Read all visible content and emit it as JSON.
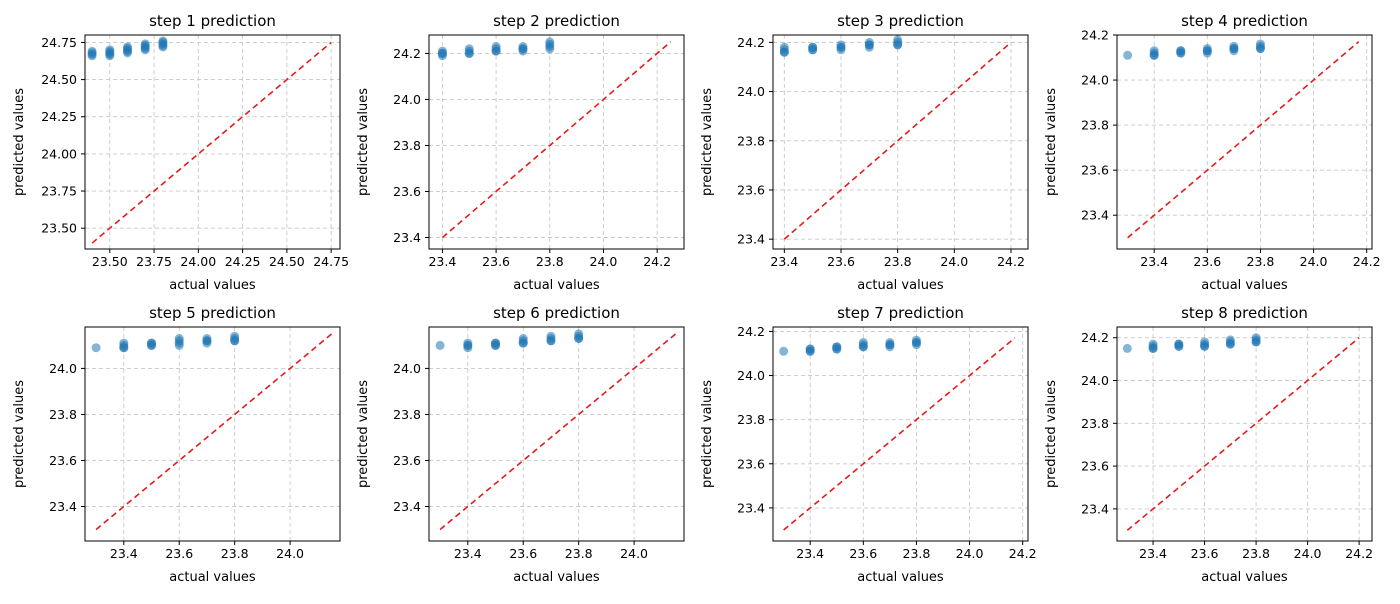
{
  "colors": {
    "points": "#1f77b4",
    "reference_line": "#e41a1c",
    "grid": "#c8c8c8",
    "axes": "#000000"
  },
  "chart_data": [
    {
      "type": "scatter",
      "title": "step 1 prediction",
      "xlabel": "actual values",
      "ylabel": "predicted values",
      "xlim": [
        23.36,
        24.8
      ],
      "ylim": [
        23.36,
        24.8
      ],
      "xticks": [
        23.5,
        23.75,
        24.0,
        24.25,
        24.5,
        24.75
      ],
      "yticks": [
        23.5,
        23.75,
        24.0,
        24.25,
        24.5,
        24.75
      ],
      "tick_labels_x": [
        "23.50",
        "23.75",
        "24.00",
        "24.25",
        "24.50",
        "24.75"
      ],
      "tick_labels_y": [
        "23.50",
        "23.75",
        "24.00",
        "24.25",
        "24.50",
        "24.75"
      ],
      "grid": true,
      "reference_line": [
        23.4,
        24.75
      ],
      "points": {
        "x": [
          23.4,
          23.4,
          23.4,
          23.4,
          23.5,
          23.5,
          23.5,
          23.5,
          23.5,
          23.6,
          23.6,
          23.6,
          23.6,
          23.6,
          23.7,
          23.7,
          23.7,
          23.7,
          23.7,
          23.8,
          23.8,
          23.8,
          23.8,
          23.8
        ],
        "y": [
          24.67,
          24.68,
          24.69,
          24.66,
          24.67,
          24.68,
          24.69,
          24.7,
          24.66,
          24.69,
          24.7,
          24.71,
          24.72,
          24.68,
          24.7,
          24.71,
          24.72,
          24.73,
          24.74,
          24.72,
          24.73,
          24.74,
          24.75,
          24.76
        ]
      }
    },
    {
      "type": "scatter",
      "title": "step 2 prediction",
      "xlabel": "actual values",
      "ylabel": "predicted values",
      "xlim": [
        23.35,
        24.3
      ],
      "ylim": [
        23.35,
        24.28
      ],
      "xticks": [
        23.4,
        23.6,
        23.8,
        24.0,
        24.2
      ],
      "yticks": [
        23.4,
        23.6,
        23.8,
        24.0,
        24.2
      ],
      "tick_labels_x": [
        "23.4",
        "23.6",
        "23.8",
        "24.0",
        "24.2"
      ],
      "tick_labels_y": [
        "23.4",
        "23.6",
        "23.8",
        "24.0",
        "24.2"
      ],
      "grid": true,
      "reference_line": [
        23.4,
        24.25
      ],
      "points": {
        "x": [
          23.4,
          23.4,
          23.4,
          23.4,
          23.5,
          23.5,
          23.5,
          23.5,
          23.6,
          23.6,
          23.6,
          23.6,
          23.7,
          23.7,
          23.7,
          23.7,
          23.8,
          23.8,
          23.8,
          23.8
        ],
        "y": [
          24.2,
          24.21,
          24.19,
          24.2,
          24.2,
          24.21,
          24.22,
          24.2,
          24.21,
          24.22,
          24.23,
          24.21,
          24.21,
          24.22,
          24.23,
          24.22,
          24.22,
          24.23,
          24.24,
          24.25
        ]
      }
    },
    {
      "type": "scatter",
      "title": "step 3 prediction",
      "xlabel": "actual values",
      "ylabel": "predicted values",
      "xlim": [
        23.36,
        24.26
      ],
      "ylim": [
        23.36,
        24.23
      ],
      "xticks": [
        23.4,
        23.6,
        23.8,
        24.0,
        24.2
      ],
      "yticks": [
        23.4,
        23.6,
        23.8,
        24.0,
        24.2
      ],
      "tick_labels_x": [
        "23.4",
        "23.6",
        "23.8",
        "24.0",
        "24.2"
      ],
      "tick_labels_y": [
        "23.4",
        "23.6",
        "23.8",
        "24.0",
        "24.2"
      ],
      "grid": true,
      "reference_line": [
        23.4,
        24.2
      ],
      "points": {
        "x": [
          23.4,
          23.4,
          23.4,
          23.4,
          23.5,
          23.5,
          23.5,
          23.5,
          23.6,
          23.6,
          23.6,
          23.6,
          23.7,
          23.7,
          23.7,
          23.7,
          23.8,
          23.8,
          23.8,
          23.8
        ],
        "y": [
          24.16,
          24.17,
          24.18,
          24.16,
          24.17,
          24.18,
          24.17,
          24.18,
          24.17,
          24.18,
          24.19,
          24.18,
          24.18,
          24.19,
          24.2,
          24.19,
          24.19,
          24.2,
          24.21,
          24.19
        ]
      }
    },
    {
      "type": "scatter",
      "title": "step 4 prediction",
      "xlabel": "actual values",
      "ylabel": "predicted values",
      "xlim": [
        23.26,
        24.22
      ],
      "ylim": [
        23.25,
        24.2
      ],
      "xticks": [
        23.4,
        23.6,
        23.8,
        24.0,
        24.2
      ],
      "yticks": [
        23.4,
        23.6,
        23.8,
        24.0,
        24.2
      ],
      "tick_labels_x": [
        "23.4",
        "23.6",
        "23.8",
        "24.0",
        "24.2"
      ],
      "tick_labels_y": [
        "23.4",
        "23.6",
        "23.8",
        "24.0",
        "24.2"
      ],
      "grid": true,
      "reference_line": [
        23.3,
        24.17
      ],
      "points": {
        "x": [
          23.3,
          23.4,
          23.4,
          23.4,
          23.4,
          23.5,
          23.5,
          23.5,
          23.5,
          23.6,
          23.6,
          23.6,
          23.6,
          23.7,
          23.7,
          23.7,
          23.7,
          23.8,
          23.8,
          23.8,
          23.8
        ],
        "y": [
          24.11,
          24.11,
          24.12,
          24.13,
          24.11,
          24.12,
          24.13,
          24.12,
          24.13,
          24.13,
          24.14,
          24.12,
          24.13,
          24.13,
          24.14,
          24.15,
          24.14,
          24.14,
          24.15,
          24.16,
          24.14
        ]
      }
    },
    {
      "type": "scatter",
      "title": "step 5 prediction",
      "xlabel": "actual values",
      "ylabel": "predicted values",
      "xlim": [
        23.26,
        24.18
      ],
      "ylim": [
        23.25,
        24.18
      ],
      "xticks": [
        23.4,
        23.6,
        23.8,
        24.0
      ],
      "yticks": [
        23.4,
        23.6,
        23.8,
        24.0
      ],
      "tick_labels_x": [
        "23.4",
        "23.6",
        "23.8",
        "24.0"
      ],
      "tick_labels_y": [
        "23.4",
        "23.6",
        "23.8",
        "24.0"
      ],
      "grid": true,
      "reference_line": [
        23.3,
        24.15
      ],
      "points": {
        "x": [
          23.3,
          23.4,
          23.4,
          23.4,
          23.4,
          23.5,
          23.5,
          23.5,
          23.5,
          23.6,
          23.6,
          23.6,
          23.6,
          23.7,
          23.7,
          23.7,
          23.7,
          23.8,
          23.8,
          23.8,
          23.8
        ],
        "y": [
          24.09,
          24.09,
          24.1,
          24.11,
          24.09,
          24.1,
          24.11,
          24.1,
          24.11,
          24.11,
          24.12,
          24.13,
          24.1,
          24.12,
          24.13,
          24.11,
          24.12,
          24.12,
          24.13,
          24.14,
          24.12
        ]
      }
    },
    {
      "type": "scatter",
      "title": "step 6 prediction",
      "xlabel": "actual values",
      "ylabel": "predicted values",
      "xlim": [
        23.26,
        24.18
      ],
      "ylim": [
        23.25,
        24.18
      ],
      "xticks": [
        23.4,
        23.6,
        23.8,
        24.0
      ],
      "yticks": [
        23.4,
        23.6,
        23.8,
        24.0
      ],
      "tick_labels_x": [
        "23.4",
        "23.6",
        "23.8",
        "24.0"
      ],
      "tick_labels_y": [
        "23.4",
        "23.6",
        "23.8",
        "24.0"
      ],
      "grid": true,
      "reference_line": [
        23.3,
        24.15
      ],
      "points": {
        "x": [
          23.3,
          23.4,
          23.4,
          23.4,
          23.4,
          23.5,
          23.5,
          23.5,
          23.5,
          23.6,
          23.6,
          23.6,
          23.6,
          23.7,
          23.7,
          23.7,
          23.7,
          23.8,
          23.8,
          23.8,
          23.8
        ],
        "y": [
          24.1,
          24.09,
          24.1,
          24.11,
          24.1,
          24.1,
          24.11,
          24.11,
          24.1,
          24.11,
          24.12,
          24.13,
          24.11,
          24.12,
          24.13,
          24.14,
          24.12,
          24.13,
          24.14,
          24.15,
          24.13
        ]
      }
    },
    {
      "type": "scatter",
      "title": "step 7 prediction",
      "xlabel": "actual values",
      "ylabel": "predicted values",
      "xlim": [
        23.26,
        24.22
      ],
      "ylim": [
        23.25,
        24.22
      ],
      "xticks": [
        23.4,
        23.6,
        23.8,
        24.0,
        24.2
      ],
      "yticks": [
        23.4,
        23.6,
        23.8,
        24.0,
        24.2
      ],
      "tick_labels_x": [
        "23.4",
        "23.6",
        "23.8",
        "24.0",
        "24.2"
      ],
      "tick_labels_y": [
        "23.4",
        "23.6",
        "23.8",
        "24.0",
        "24.2"
      ],
      "grid": true,
      "reference_line": [
        23.3,
        24.17
      ],
      "points": {
        "x": [
          23.3,
          23.4,
          23.4,
          23.4,
          23.4,
          23.5,
          23.5,
          23.5,
          23.5,
          23.6,
          23.6,
          23.6,
          23.6,
          23.7,
          23.7,
          23.7,
          23.7,
          23.8,
          23.8,
          23.8,
          23.8
        ],
        "y": [
          24.11,
          24.11,
          24.12,
          24.11,
          24.12,
          24.12,
          24.13,
          24.12,
          24.13,
          24.13,
          24.14,
          24.15,
          24.13,
          24.14,
          24.15,
          24.13,
          24.14,
          24.14,
          24.15,
          24.16,
          24.15
        ]
      }
    },
    {
      "type": "scatter",
      "title": "step 8 prediction",
      "xlabel": "actual values",
      "ylabel": "predicted values",
      "xlim": [
        23.26,
        24.25
      ],
      "ylim": [
        23.25,
        24.25
      ],
      "xticks": [
        23.4,
        23.6,
        23.8,
        24.0,
        24.2
      ],
      "yticks": [
        23.4,
        23.6,
        23.8,
        24.0,
        24.2
      ],
      "tick_labels_x": [
        "23.4",
        "23.6",
        "23.8",
        "24.0",
        "24.2"
      ],
      "tick_labels_y": [
        "23.4",
        "23.6",
        "23.8",
        "24.0",
        "24.2"
      ],
      "grid": true,
      "reference_line": [
        23.3,
        24.2
      ],
      "points": {
        "x": [
          23.3,
          23.4,
          23.4,
          23.4,
          23.4,
          23.5,
          23.5,
          23.5,
          23.5,
          23.6,
          23.6,
          23.6,
          23.6,
          23.7,
          23.7,
          23.7,
          23.7,
          23.8,
          23.8,
          23.8,
          23.8
        ],
        "y": [
          24.15,
          24.15,
          24.16,
          24.17,
          24.15,
          24.16,
          24.17,
          24.16,
          24.17,
          24.16,
          24.17,
          24.18,
          24.16,
          24.17,
          24.18,
          24.19,
          24.17,
          24.18,
          24.19,
          24.2,
          24.18
        ]
      }
    }
  ]
}
